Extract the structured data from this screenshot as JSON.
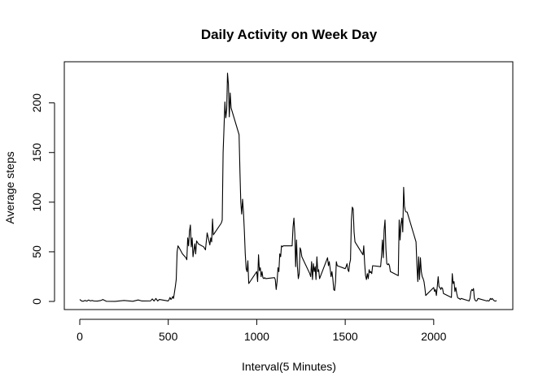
{
  "chart_data": {
    "type": "line",
    "title": "Daily Activity on Week Day",
    "xlabel": "Interval(5 Minutes)",
    "ylabel": "Average steps",
    "xlim": [
      0,
      2355
    ],
    "ylim": [
      0,
      230
    ],
    "x_ticks": [
      0,
      500,
      1000,
      1500,
      2000
    ],
    "y_ticks": [
      0,
      50,
      100,
      150,
      200
    ],
    "grid": false,
    "legend": "none",
    "series": [
      {
        "color": "#000000",
        "points": [
          [
            0,
            2
          ],
          [
            10,
            0.5
          ],
          [
            20,
            0.2
          ],
          [
            30,
            1
          ],
          [
            40,
            0.3
          ],
          [
            50,
            1.5
          ],
          [
            60,
            0.5
          ],
          [
            70,
            1
          ],
          [
            80,
            0.4
          ],
          [
            100,
            0.3
          ],
          [
            120,
            1
          ],
          [
            130,
            2
          ],
          [
            150,
            0.2
          ],
          [
            200,
            0.1
          ],
          [
            250,
            1
          ],
          [
            300,
            0.2
          ],
          [
            330,
            1.5
          ],
          [
            350,
            0.5
          ],
          [
            400,
            0.6
          ],
          [
            410,
            2.5
          ],
          [
            420,
            0.4
          ],
          [
            430,
            3
          ],
          [
            440,
            0.5
          ],
          [
            450,
            2
          ],
          [
            500,
            0.5
          ],
          [
            505,
            2
          ],
          [
            510,
            4
          ],
          [
            515,
            2
          ],
          [
            520,
            3
          ],
          [
            525,
            5
          ],
          [
            530,
            3
          ],
          [
            540,
            15
          ],
          [
            545,
            22
          ],
          [
            550,
            50
          ],
          [
            555,
            56
          ],
          [
            565,
            53
          ],
          [
            580,
            48
          ],
          [
            600,
            44
          ],
          [
            605,
            42
          ],
          [
            610,
            64
          ],
          [
            615,
            56
          ],
          [
            620,
            71
          ],
          [
            625,
            77
          ],
          [
            630,
            55
          ],
          [
            635,
            64
          ],
          [
            640,
            45
          ],
          [
            650,
            58
          ],
          [
            655,
            48
          ],
          [
            660,
            61
          ],
          [
            670,
            58
          ],
          [
            680,
            57
          ],
          [
            700,
            55
          ],
          [
            710,
            52
          ],
          [
            715,
            60
          ],
          [
            720,
            69
          ],
          [
            725,
            65
          ],
          [
            730,
            61
          ],
          [
            735,
            57
          ],
          [
            740,
            64
          ],
          [
            745,
            60
          ],
          [
            750,
            83
          ],
          [
            755,
            67
          ],
          [
            800,
            79
          ],
          [
            805,
            82
          ],
          [
            810,
            150
          ],
          [
            815,
            175
          ],
          [
            820,
            201
          ],
          [
            825,
            185
          ],
          [
            830,
            193
          ],
          [
            835,
            230
          ],
          [
            840,
            219
          ],
          [
            845,
            186
          ],
          [
            850,
            210
          ],
          [
            855,
            195
          ],
          [
            900,
            168
          ],
          [
            905,
            130
          ],
          [
            910,
            100
          ],
          [
            915,
            88
          ],
          [
            920,
            103
          ],
          [
            925,
            90
          ],
          [
            930,
            71
          ],
          [
            935,
            48
          ],
          [
            940,
            33
          ],
          [
            945,
            30
          ],
          [
            950,
            41
          ],
          [
            955,
            18
          ],
          [
            1000,
            30
          ],
          [
            1005,
            20
          ],
          [
            1010,
            47
          ],
          [
            1015,
            31
          ],
          [
            1020,
            34
          ],
          [
            1025,
            25
          ],
          [
            1030,
            30
          ],
          [
            1035,
            24
          ],
          [
            1040,
            23
          ],
          [
            1045,
            24
          ],
          [
            1050,
            23
          ],
          [
            1100,
            24
          ],
          [
            1105,
            22
          ],
          [
            1110,
            12
          ],
          [
            1115,
            20
          ],
          [
            1120,
            34
          ],
          [
            1125,
            30
          ],
          [
            1130,
            48
          ],
          [
            1135,
            45
          ],
          [
            1140,
            56
          ],
          [
            1145,
            55
          ],
          [
            1150,
            56
          ],
          [
            1155,
            56
          ],
          [
            1200,
            56
          ],
          [
            1205,
            75
          ],
          [
            1210,
            84
          ],
          [
            1215,
            68
          ],
          [
            1220,
            35
          ],
          [
            1225,
            62
          ],
          [
            1230,
            35
          ],
          [
            1235,
            23
          ],
          [
            1240,
            28
          ],
          [
            1245,
            54
          ],
          [
            1250,
            51
          ],
          [
            1255,
            45
          ],
          [
            1300,
            28
          ],
          [
            1305,
            25
          ],
          [
            1310,
            40
          ],
          [
            1315,
            22
          ],
          [
            1320,
            38
          ],
          [
            1325,
            30
          ],
          [
            1330,
            35
          ],
          [
            1335,
            22
          ],
          [
            1340,
            45
          ],
          [
            1345,
            30
          ],
          [
            1350,
            32
          ],
          [
            1355,
            23
          ],
          [
            1400,
            44
          ],
          [
            1405,
            36
          ],
          [
            1410,
            40
          ],
          [
            1415,
            33
          ],
          [
            1420,
            25
          ],
          [
            1425,
            30
          ],
          [
            1430,
            23
          ],
          [
            1435,
            12
          ],
          [
            1440,
            11
          ],
          [
            1445,
            20
          ],
          [
            1450,
            40
          ],
          [
            1455,
            36
          ],
          [
            1500,
            33
          ],
          [
            1505,
            35
          ],
          [
            1510,
            38
          ],
          [
            1515,
            32
          ],
          [
            1520,
            30
          ],
          [
            1525,
            38
          ],
          [
            1530,
            42
          ],
          [
            1535,
            82
          ],
          [
            1540,
            95
          ],
          [
            1545,
            93
          ],
          [
            1550,
            70
          ],
          [
            1555,
            60
          ],
          [
            1600,
            47
          ],
          [
            1605,
            56
          ],
          [
            1610,
            38
          ],
          [
            1615,
            26
          ],
          [
            1620,
            22
          ],
          [
            1625,
            28
          ],
          [
            1630,
            23
          ],
          [
            1635,
            32
          ],
          [
            1640,
            29
          ],
          [
            1645,
            30
          ],
          [
            1650,
            28
          ],
          [
            1655,
            36
          ],
          [
            1700,
            35
          ],
          [
            1705,
            46
          ],
          [
            1710,
            62
          ],
          [
            1715,
            44
          ],
          [
            1720,
            72
          ],
          [
            1725,
            82
          ],
          [
            1730,
            53
          ],
          [
            1735,
            38
          ],
          [
            1740,
            37
          ],
          [
            1745,
            38
          ],
          [
            1750,
            36
          ],
          [
            1755,
            30
          ],
          [
            1800,
            26
          ],
          [
            1805,
            82
          ],
          [
            1810,
            62
          ],
          [
            1815,
            78
          ],
          [
            1820,
            84
          ],
          [
            1825,
            70
          ],
          [
            1830,
            115
          ],
          [
            1835,
            96
          ],
          [
            1840,
            91
          ],
          [
            1845,
            90
          ],
          [
            1850,
            90
          ],
          [
            1855,
            87
          ],
          [
            1900,
            60
          ],
          [
            1905,
            36
          ],
          [
            1910,
            20
          ],
          [
            1915,
            45
          ],
          [
            1920,
            22
          ],
          [
            1925,
            44
          ],
          [
            1930,
            30
          ],
          [
            1935,
            25
          ],
          [
            1940,
            23
          ],
          [
            1945,
            20
          ],
          [
            1950,
            14
          ],
          [
            1955,
            6
          ],
          [
            2000,
            14
          ],
          [
            2005,
            10
          ],
          [
            2010,
            12
          ],
          [
            2015,
            6
          ],
          [
            2020,
            15
          ],
          [
            2025,
            25
          ],
          [
            2030,
            15
          ],
          [
            2035,
            14
          ],
          [
            2040,
            12
          ],
          [
            2045,
            14
          ],
          [
            2050,
            13
          ],
          [
            2055,
            8
          ],
          [
            2100,
            4
          ],
          [
            2105,
            28
          ],
          [
            2110,
            18
          ],
          [
            2115,
            20
          ],
          [
            2120,
            10
          ],
          [
            2125,
            14
          ],
          [
            2130,
            8
          ],
          [
            2135,
            4
          ],
          [
            2140,
            3
          ],
          [
            2145,
            3
          ],
          [
            2150,
            2
          ],
          [
            2155,
            3
          ],
          [
            2200,
            0.5
          ],
          [
            2205,
            3
          ],
          [
            2210,
            10
          ],
          [
            2215,
            12
          ],
          [
            2220,
            11
          ],
          [
            2225,
            13
          ],
          [
            2230,
            3
          ],
          [
            2235,
            1
          ],
          [
            2240,
            0.4
          ],
          [
            2245,
            1
          ],
          [
            2250,
            3
          ],
          [
            2300,
            0.5
          ],
          [
            2305,
            1
          ],
          [
            2310,
            0.3
          ],
          [
            2315,
            1
          ],
          [
            2320,
            3
          ],
          [
            2325,
            2
          ],
          [
            2330,
            3
          ],
          [
            2335,
            2
          ],
          [
            2340,
            1
          ],
          [
            2345,
            0.5
          ],
          [
            2350,
            0.3
          ],
          [
            2355,
            1
          ]
        ]
      }
    ]
  }
}
